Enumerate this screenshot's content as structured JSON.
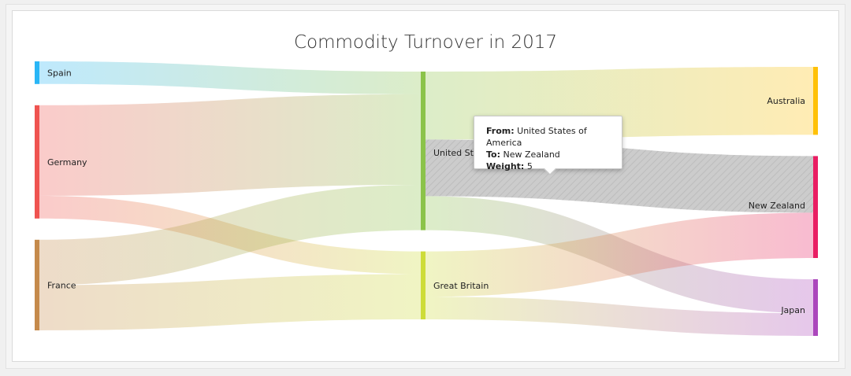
{
  "chart_data": {
    "type": "sankey",
    "title": "Commodity Turnover in 2017",
    "nodes": [
      {
        "name": "Spain",
        "color": "#29b6f6",
        "column": 0
      },
      {
        "name": "Germany",
        "color": "#ef5350",
        "column": 0
      },
      {
        "name": "France",
        "color": "#c58a4b",
        "column": 0
      },
      {
        "name": "United States of America",
        "label": "United States of America",
        "color": "#8bc34a",
        "column": 1
      },
      {
        "name": "Great Britain",
        "color": "#cddc39",
        "column": 1
      },
      {
        "name": "Australia",
        "color": "#ffc107",
        "column": 2
      },
      {
        "name": "New Zealand",
        "color": "#e91e63",
        "column": 2
      },
      {
        "name": "Japan",
        "color": "#ab47bc",
        "column": 2
      }
    ],
    "links": [
      {
        "from": "Spain",
        "to": "United States of America",
        "weight": 2
      },
      {
        "from": "Germany",
        "to": "United States of America",
        "weight": 8
      },
      {
        "from": "Germany",
        "to": "Great Britain",
        "weight": 2
      },
      {
        "from": "France",
        "to": "United States of America",
        "weight": 4
      },
      {
        "from": "France",
        "to": "Great Britain",
        "weight": 4
      },
      {
        "from": "United States of America",
        "to": "Australia",
        "weight": 6
      },
      {
        "from": "United States of America",
        "to": "New Zealand",
        "weight": 5
      },
      {
        "from": "United States of America",
        "to": "Japan",
        "weight": 3
      },
      {
        "from": "Great Britain",
        "to": "New Zealand",
        "weight": 4
      },
      {
        "from": "Great Britain",
        "to": "Japan",
        "weight": 2
      }
    ],
    "highlighted_link": {
      "from": "United States of America",
      "to": "New Zealand"
    }
  },
  "tooltip": {
    "from_label": "From:",
    "from_value": "United States of America",
    "to_label": "To:",
    "to_value": "New Zealand",
    "weight_label": "Weight:",
    "weight_value": "5"
  }
}
